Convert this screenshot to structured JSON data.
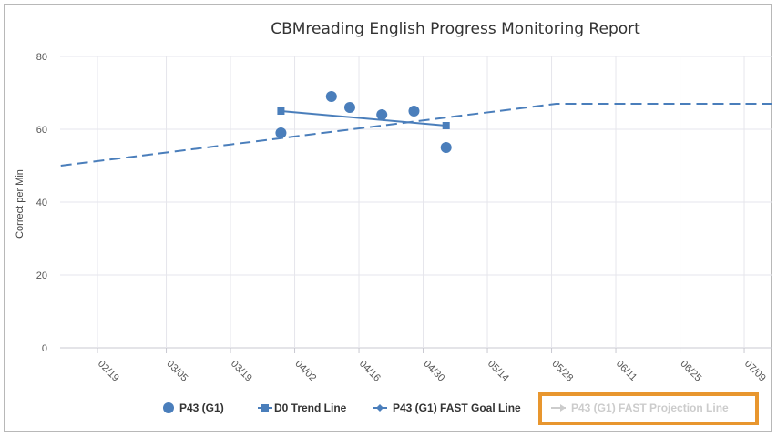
{
  "chart_data": {
    "type": "line",
    "title": "CBMreading English Progress Monitoring Report",
    "ylabel": "Correct per Min",
    "xlabel": "",
    "ylim": [
      0,
      80
    ],
    "yticks": [
      0,
      20,
      40,
      60,
      80
    ],
    "x_tick_labels": [
      "02/19",
      "03/05",
      "03/19",
      "04/02",
      "04/16",
      "04/30",
      "05/14",
      "05/28",
      "06/11",
      "06/25",
      "07/09"
    ],
    "grid": true,
    "legend_position": "bottom",
    "series": [
      {
        "name": "P43 (G1)",
        "kind": "scatter",
        "color": "#4a7ebb",
        "points": [
          {
            "x": "03/30",
            "y": 59
          },
          {
            "x": "04/10",
            "y": 69
          },
          {
            "x": "04/14",
            "y": 66
          },
          {
            "x": "04/21",
            "y": 64
          },
          {
            "x": "04/28",
            "y": 65
          },
          {
            "x": "05/05",
            "y": 55
          }
        ]
      },
      {
        "name": "D0 Trend Line",
        "kind": "line",
        "color": "#4a7ebb",
        "points": [
          {
            "x": "03/30",
            "y": 65
          },
          {
            "x": "05/05",
            "y": 61
          }
        ]
      },
      {
        "name": "P43 (G1) FAST Goal Line",
        "kind": "dashed-line",
        "color": "#4a7ebb",
        "points": [
          {
            "x": "02/11",
            "y": 50
          },
          {
            "x": "05/29",
            "y": 67
          },
          {
            "x": "07/17",
            "y": 67
          }
        ]
      },
      {
        "name": "P43 (G1) FAST Projection Line",
        "kind": "line",
        "color": "#cccccc",
        "hidden": true,
        "points": []
      }
    ],
    "highlight_color": "#e8962e"
  }
}
